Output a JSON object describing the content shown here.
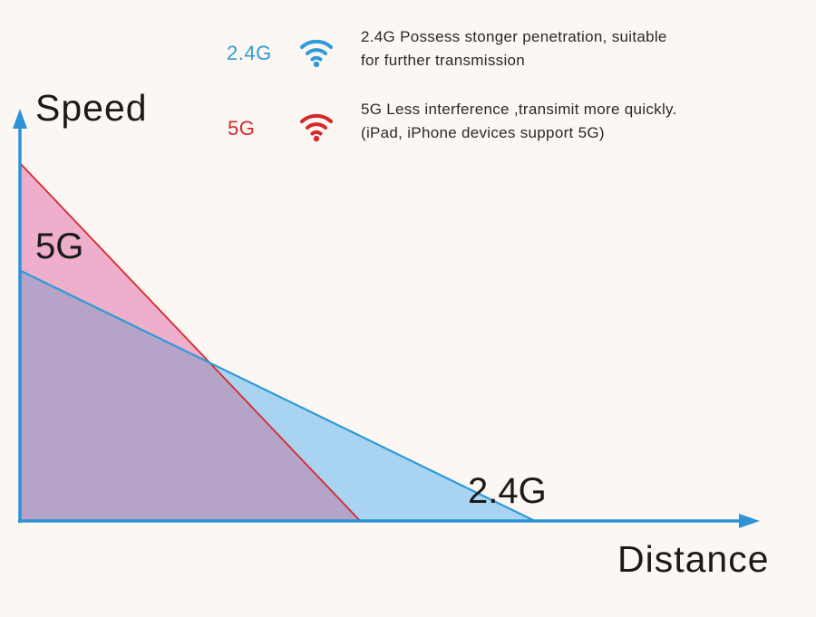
{
  "colors": {
    "background": "#fcf7f2",
    "accent_24g": "#2f9ad8",
    "accent_5g": "#d6282c",
    "fill_24g": "#a8d4f2",
    "fill_5g": "#efaecb",
    "fill_overlap": "#b6a3c8",
    "axis": "#2b93d6"
  },
  "legend": {
    "items": [
      {
        "label": "2.4G",
        "icon": "wifi-icon",
        "lines": [
          "2.4G Possess stonger penetration, suitable",
          "for further transmission"
        ]
      },
      {
        "label": "5G",
        "icon": "wifi-icon",
        "lines": [
          "5G Less interference ,transimit more quickly.",
          "(iPad, iPhone devices support 5G)"
        ]
      }
    ]
  },
  "chart_data": {
    "type": "area",
    "xlabel": "Distance",
    "ylabel": "Speed",
    "xlim": [
      0,
      10
    ],
    "ylim": [
      0,
      10
    ],
    "grid": false,
    "series": [
      {
        "name": "2.4G",
        "x": [
          0,
          7.78
        ],
        "y": [
          7.0,
          0
        ]
      },
      {
        "name": "5G",
        "x": [
          0,
          5.14
        ],
        "y": [
          10.0,
          0
        ]
      }
    ]
  }
}
